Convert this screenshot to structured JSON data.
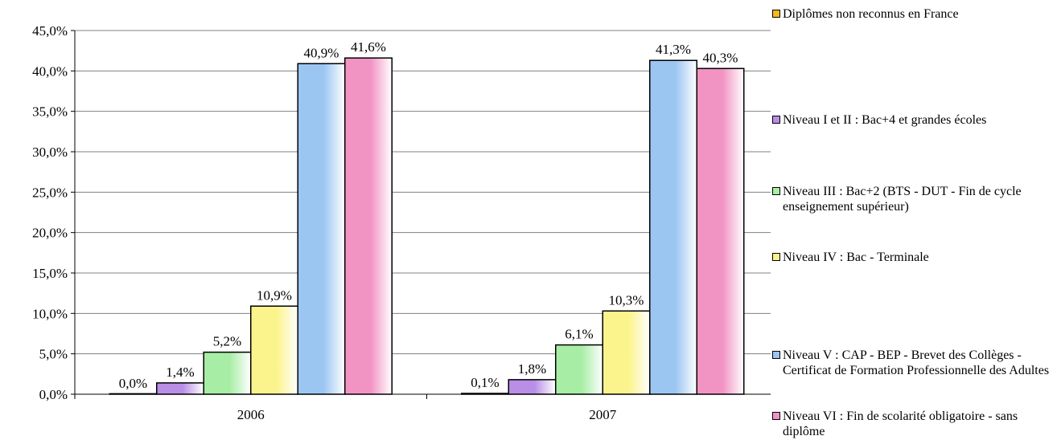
{
  "chart_data": {
    "type": "bar",
    "categories": [
      "2006",
      "2007"
    ],
    "series": [
      {
        "name": "Diplômes non reconnus en France",
        "values": [
          0.0,
          0.1
        ],
        "labels": [
          "0,0%",
          "0,1%"
        ],
        "color": "#f5b91e"
      },
      {
        "name": "Niveau I et II : Bac+4 et grandes écoles",
        "values": [
          1.4,
          1.8
        ],
        "labels": [
          "1,4%",
          "1,8%"
        ],
        "color": "#b98ee6"
      },
      {
        "name": "Niveau III : Bac+2 (BTS - DUT - Fin de cycle enseignement supérieur)",
        "values": [
          5.2,
          6.1
        ],
        "labels": [
          "5,2%",
          "6,1%"
        ],
        "color": "#a8eda5"
      },
      {
        "name": "Niveau IV : Bac - Terminale",
        "values": [
          10.9,
          10.3
        ],
        "labels": [
          "10,9%",
          "10,3%"
        ],
        "color": "#fbf48c"
      },
      {
        "name": "Niveau V : CAP - BEP - Brevet des Collèges - Certificat de Formation Professionnelle des Adultes",
        "values": [
          40.9,
          41.3
        ],
        "labels": [
          "40,9%",
          "41,3%"
        ],
        "color": "#9cc6f2"
      },
      {
        "name": "Niveau VI : Fin de scolarité obligatoire - sans diplôme",
        "values": [
          41.6,
          40.3
        ],
        "labels": [
          "41,6%",
          "40,3%"
        ],
        "color": "#f294c3"
      }
    ],
    "ylim": [
      0,
      45
    ],
    "yticks": [
      "0,0%",
      "5,0%",
      "10,0%",
      "15,0%",
      "20,0%",
      "25,0%",
      "30,0%",
      "35,0%",
      "40,0%",
      "45,0%"
    ],
    "grid": true,
    "legend_position": "right"
  }
}
